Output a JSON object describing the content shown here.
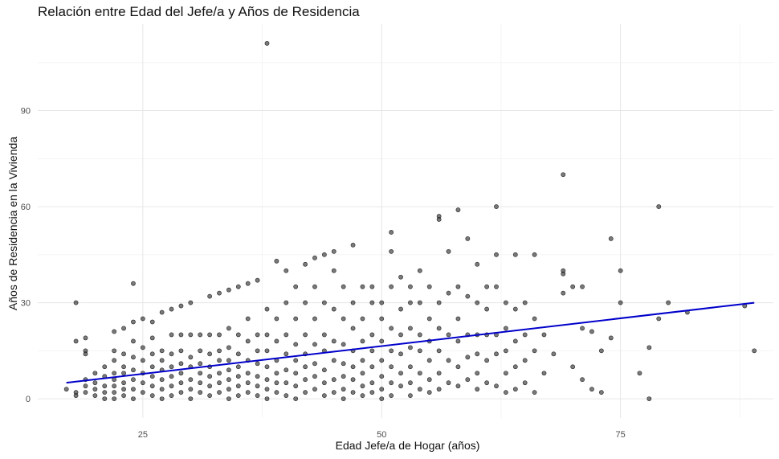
{
  "chart_data": {
    "type": "scatter",
    "title": "Relación entre Edad del Jefe/a y Años de Residencia",
    "xlabel": "Edad Jefe/a de Hogar (años)",
    "ylabel": "Años de Residencia en la Vivienda",
    "xlim": [
      14,
      91
    ],
    "ylim": [
      -6,
      117
    ],
    "x_ticks": [
      25,
      50,
      75
    ],
    "y_ticks": [
      0,
      30,
      60,
      90
    ],
    "grid": true,
    "point_color": "#333333",
    "trend_color": "#0000cc",
    "trend": {
      "x": [
        17,
        89
      ],
      "y": [
        5,
        30
      ]
    },
    "series": [
      {
        "values": [
          [
            17,
            3
          ],
          [
            18,
            30
          ],
          [
            18,
            18
          ],
          [
            18,
            2
          ],
          [
            18,
            1
          ],
          [
            19,
            19
          ],
          [
            19,
            15
          ],
          [
            19,
            14
          ],
          [
            19,
            6
          ],
          [
            19,
            4
          ],
          [
            19,
            2
          ],
          [
            20,
            8
          ],
          [
            20,
            5
          ],
          [
            20,
            3
          ],
          [
            20,
            1
          ],
          [
            21,
            10
          ],
          [
            21,
            7
          ],
          [
            21,
            4
          ],
          [
            21,
            2
          ],
          [
            21,
            0
          ],
          [
            22,
            21
          ],
          [
            22,
            15
          ],
          [
            22,
            12
          ],
          [
            22,
            8
          ],
          [
            22,
            6
          ],
          [
            22,
            4
          ],
          [
            22,
            2
          ],
          [
            22,
            0
          ],
          [
            23,
            22
          ],
          [
            23,
            14
          ],
          [
            23,
            10
          ],
          [
            23,
            8
          ],
          [
            23,
            5
          ],
          [
            23,
            3
          ],
          [
            23,
            1
          ],
          [
            24,
            36
          ],
          [
            24,
            24
          ],
          [
            24,
            18
          ],
          [
            24,
            13
          ],
          [
            24,
            9
          ],
          [
            24,
            6
          ],
          [
            24,
            3
          ],
          [
            24,
            0
          ],
          [
            25,
            25
          ],
          [
            25,
            16
          ],
          [
            25,
            12
          ],
          [
            25,
            8
          ],
          [
            25,
            5
          ],
          [
            25,
            2
          ],
          [
            26,
            24
          ],
          [
            26,
            19
          ],
          [
            26,
            14
          ],
          [
            26,
            10
          ],
          [
            26,
            7
          ],
          [
            26,
            4
          ],
          [
            26,
            1
          ],
          [
            27,
            27
          ],
          [
            27,
            15
          ],
          [
            27,
            12
          ],
          [
            27,
            9
          ],
          [
            27,
            6
          ],
          [
            27,
            3
          ],
          [
            27,
            0
          ],
          [
            28,
            28
          ],
          [
            28,
            20
          ],
          [
            28,
            14
          ],
          [
            28,
            10
          ],
          [
            28,
            7
          ],
          [
            28,
            4
          ],
          [
            28,
            1
          ],
          [
            29,
            29
          ],
          [
            29,
            20
          ],
          [
            29,
            15
          ],
          [
            29,
            11
          ],
          [
            29,
            8
          ],
          [
            29,
            5
          ],
          [
            29,
            2
          ],
          [
            30,
            30
          ],
          [
            30,
            20
          ],
          [
            30,
            13
          ],
          [
            30,
            10
          ],
          [
            30,
            6
          ],
          [
            30,
            3
          ],
          [
            30,
            0
          ],
          [
            31,
            20
          ],
          [
            31,
            15
          ],
          [
            31,
            11
          ],
          [
            31,
            8
          ],
          [
            31,
            5
          ],
          [
            31,
            2
          ],
          [
            32,
            32
          ],
          [
            32,
            20
          ],
          [
            32,
            14
          ],
          [
            32,
            10
          ],
          [
            32,
            7
          ],
          [
            32,
            4
          ],
          [
            32,
            1
          ],
          [
            33,
            33
          ],
          [
            33,
            20
          ],
          [
            33,
            15
          ],
          [
            33,
            12
          ],
          [
            33,
            8
          ],
          [
            33,
            5
          ],
          [
            33,
            2
          ],
          [
            34,
            34
          ],
          [
            34,
            22
          ],
          [
            34,
            16
          ],
          [
            34,
            12
          ],
          [
            34,
            9
          ],
          [
            34,
            6
          ],
          [
            34,
            3
          ],
          [
            34,
            0
          ],
          [
            35,
            35
          ],
          [
            35,
            20
          ],
          [
            35,
            14
          ],
          [
            35,
            10
          ],
          [
            35,
            7
          ],
          [
            35,
            4
          ],
          [
            35,
            1
          ],
          [
            36,
            36
          ],
          [
            36,
            25
          ],
          [
            36,
            18
          ],
          [
            36,
            12
          ],
          [
            36,
            8
          ],
          [
            36,
            5
          ],
          [
            36,
            2
          ],
          [
            37,
            37
          ],
          [
            37,
            20
          ],
          [
            37,
            15
          ],
          [
            37,
            11
          ],
          [
            37,
            7
          ],
          [
            37,
            4
          ],
          [
            37,
            1
          ],
          [
            38,
            111
          ],
          [
            38,
            28
          ],
          [
            38,
            20
          ],
          [
            38,
            15
          ],
          [
            38,
            10
          ],
          [
            38,
            6
          ],
          [
            38,
            3
          ],
          [
            38,
            0
          ],
          [
            39,
            43
          ],
          [
            39,
            25
          ],
          [
            39,
            18
          ],
          [
            39,
            12
          ],
          [
            39,
            8
          ],
          [
            39,
            5
          ],
          [
            39,
            2
          ],
          [
            40,
            40
          ],
          [
            40,
            30
          ],
          [
            40,
            20
          ],
          [
            40,
            14
          ],
          [
            40,
            9
          ],
          [
            40,
            5
          ],
          [
            40,
            1
          ],
          [
            41,
            35
          ],
          [
            41,
            25
          ],
          [
            41,
            17
          ],
          [
            41,
            12
          ],
          [
            41,
            8
          ],
          [
            41,
            4
          ],
          [
            41,
            0
          ],
          [
            42,
            42
          ],
          [
            42,
            30
          ],
          [
            42,
            20
          ],
          [
            42,
            14
          ],
          [
            42,
            10
          ],
          [
            42,
            6
          ],
          [
            42,
            2
          ],
          [
            43,
            44
          ],
          [
            43,
            35
          ],
          [
            43,
            25
          ],
          [
            43,
            17
          ],
          [
            43,
            11
          ],
          [
            43,
            7
          ],
          [
            43,
            3
          ],
          [
            44,
            45
          ],
          [
            44,
            30
          ],
          [
            44,
            20
          ],
          [
            44,
            15
          ],
          [
            44,
            9
          ],
          [
            44,
            5
          ],
          [
            44,
            1
          ],
          [
            45,
            46
          ],
          [
            45,
            40
          ],
          [
            45,
            28
          ],
          [
            45,
            18
          ],
          [
            45,
            12
          ],
          [
            45,
            6
          ],
          [
            45,
            2
          ],
          [
            46,
            35
          ],
          [
            46,
            25
          ],
          [
            46,
            17
          ],
          [
            46,
            11
          ],
          [
            46,
            7
          ],
          [
            46,
            3
          ],
          [
            46,
            0
          ],
          [
            47,
            48
          ],
          [
            47,
            30
          ],
          [
            47,
            22
          ],
          [
            47,
            15
          ],
          [
            47,
            10
          ],
          [
            47,
            6
          ],
          [
            47,
            2
          ],
          [
            48,
            35
          ],
          [
            48,
            25
          ],
          [
            48,
            18
          ],
          [
            48,
            12
          ],
          [
            48,
            8
          ],
          [
            48,
            4
          ],
          [
            48,
            1
          ],
          [
            49,
            35
          ],
          [
            49,
            30
          ],
          [
            49,
            20
          ],
          [
            49,
            15
          ],
          [
            49,
            10
          ],
          [
            49,
            5
          ],
          [
            49,
            2
          ],
          [
            50,
            30
          ],
          [
            50,
            25
          ],
          [
            50,
            18
          ],
          [
            50,
            12
          ],
          [
            50,
            7
          ],
          [
            50,
            3
          ],
          [
            50,
            0
          ],
          [
            51,
            52
          ],
          [
            51,
            46
          ],
          [
            51,
            35
          ],
          [
            51,
            22
          ],
          [
            51,
            15
          ],
          [
            51,
            10
          ],
          [
            51,
            5
          ],
          [
            51,
            1
          ],
          [
            52,
            38
          ],
          [
            52,
            28
          ],
          [
            52,
            20
          ],
          [
            52,
            14
          ],
          [
            52,
            8
          ],
          [
            52,
            4
          ],
          [
            53,
            35
          ],
          [
            53,
            30
          ],
          [
            53,
            22
          ],
          [
            53,
            16
          ],
          [
            53,
            10
          ],
          [
            53,
            5
          ],
          [
            53,
            1
          ],
          [
            54,
            40
          ],
          [
            54,
            30
          ],
          [
            54,
            20
          ],
          [
            54,
            15
          ],
          [
            54,
            8
          ],
          [
            54,
            3
          ],
          [
            55,
            35
          ],
          [
            55,
            25
          ],
          [
            55,
            18
          ],
          [
            55,
            12
          ],
          [
            55,
            6
          ],
          [
            55,
            2
          ],
          [
            56,
            57
          ],
          [
            56,
            56
          ],
          [
            56,
            30
          ],
          [
            56,
            22
          ],
          [
            56,
            15
          ],
          [
            56,
            8
          ],
          [
            56,
            3
          ],
          [
            57,
            46
          ],
          [
            57,
            33
          ],
          [
            57,
            20
          ],
          [
            57,
            12
          ],
          [
            57,
            5
          ],
          [
            58,
            59
          ],
          [
            58,
            35
          ],
          [
            58,
            25
          ],
          [
            58,
            18
          ],
          [
            58,
            10
          ],
          [
            58,
            4
          ],
          [
            59,
            50
          ],
          [
            59,
            32
          ],
          [
            59,
            20
          ],
          [
            59,
            13
          ],
          [
            59,
            6
          ],
          [
            60,
            42
          ],
          [
            60,
            30
          ],
          [
            60,
            20
          ],
          [
            60,
            14
          ],
          [
            60,
            8
          ],
          [
            60,
            3
          ],
          [
            61,
            35
          ],
          [
            61,
            28
          ],
          [
            61,
            20
          ],
          [
            61,
            12
          ],
          [
            61,
            5
          ],
          [
            62,
            60
          ],
          [
            62,
            45
          ],
          [
            62,
            35
          ],
          [
            62,
            20
          ],
          [
            62,
            14
          ],
          [
            62,
            4
          ],
          [
            63,
            30
          ],
          [
            63,
            22
          ],
          [
            63,
            15
          ],
          [
            63,
            8
          ],
          [
            63,
            2
          ],
          [
            64,
            45
          ],
          [
            64,
            28
          ],
          [
            64,
            18
          ],
          [
            64,
            10
          ],
          [
            64,
            3
          ],
          [
            65,
            30
          ],
          [
            65,
            20
          ],
          [
            65,
            12
          ],
          [
            65,
            5
          ],
          [
            66,
            45
          ],
          [
            66,
            25
          ],
          [
            66,
            15
          ],
          [
            66,
            2
          ],
          [
            67,
            20
          ],
          [
            67,
            8
          ],
          [
            68,
            14
          ],
          [
            69,
            70
          ],
          [
            69,
            40
          ],
          [
            69,
            39
          ],
          [
            69,
            33
          ],
          [
            70,
            35
          ],
          [
            70,
            10
          ],
          [
            71,
            35
          ],
          [
            71,
            22
          ],
          [
            71,
            6
          ],
          [
            72,
            21
          ],
          [
            72,
            3
          ],
          [
            73,
            15
          ],
          [
            73,
            2
          ],
          [
            74,
            50
          ],
          [
            74,
            19
          ],
          [
            75,
            40
          ],
          [
            75,
            30
          ],
          [
            77,
            8
          ],
          [
            78,
            16
          ],
          [
            78,
            0
          ],
          [
            79,
            60
          ],
          [
            79,
            25
          ],
          [
            80,
            30
          ],
          [
            82,
            27
          ],
          [
            88,
            29
          ],
          [
            89,
            15
          ]
        ]
      }
    ]
  }
}
